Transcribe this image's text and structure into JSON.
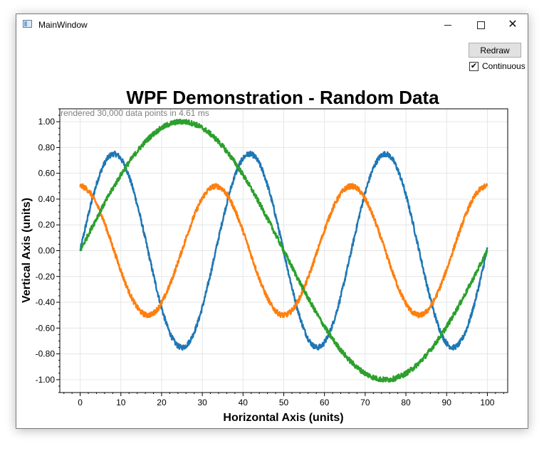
{
  "window": {
    "title": "MainWindow",
    "icon": "app-window-icon",
    "controls": {
      "minimize_icon": "minimize-icon",
      "maximize_icon": "maximize-icon",
      "close_icon": "close-icon",
      "close_glyph": "✕"
    }
  },
  "toolbar": {
    "redraw_label": "Redraw",
    "continuous_label": "Continuous",
    "continuous_checked": true,
    "check_glyph": "✔"
  },
  "chart": {
    "title": "WPF Demonstration - Random Data",
    "benchmark": "rendered 30,000 data points in 4.61 ms",
    "xlabel": "Horizontal Axis (units)",
    "ylabel": "Vertical Axis (units)"
  },
  "chart_data": {
    "type": "line",
    "title": "WPF Demonstration - Random Data",
    "xlabel": "Horizontal Axis (units)",
    "ylabel": "Vertical Axis (units)",
    "xlim": [
      -5,
      105
    ],
    "ylim": [
      -1.1,
      1.1
    ],
    "x_ticks": [
      0,
      10,
      20,
      30,
      40,
      50,
      60,
      70,
      80,
      90,
      100
    ],
    "x_tick_labels": [
      "0",
      "10",
      "20",
      "30",
      "40",
      "50",
      "60",
      "70",
      "80",
      "90",
      "100"
    ],
    "y_ticks": [
      -1,
      -0.8,
      -0.6,
      -0.4,
      -0.2,
      0,
      0.2,
      0.4,
      0.6,
      0.8,
      1
    ],
    "y_tick_labels": [
      "-1.00",
      "-0.80",
      "-0.60",
      "-0.40",
      "-0.20",
      "0.00",
      "0.20",
      "0.40",
      "0.60",
      "0.80",
      "1.00"
    ],
    "grid": true,
    "points_per_series": 10000,
    "series": [
      {
        "color": "#1f77b4",
        "amplitude": 0.75,
        "period": 33.3,
        "phase": 0,
        "noise": 0.04
      },
      {
        "color": "#ff7f0e",
        "amplitude": 0.5,
        "period": 33.3,
        "phase": 1.5708,
        "noise": 0.04
      },
      {
        "color": "#2ca02c",
        "amplitude": 1.0,
        "period": 100,
        "phase": 0,
        "noise": 0.04
      }
    ]
  }
}
